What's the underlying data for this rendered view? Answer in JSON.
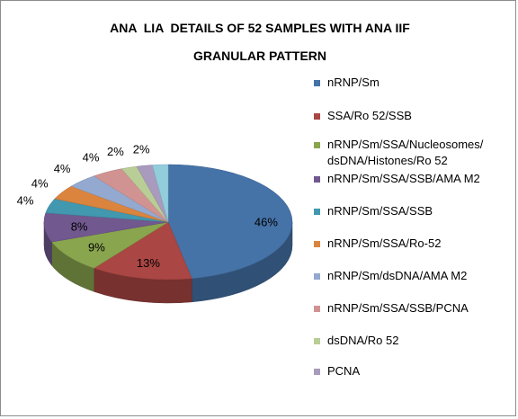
{
  "chart_data": {
    "type": "pie",
    "title_line1": "ANA  LIA  DETAILS OF 52 SAMPLES WITH ANA IIF",
    "title_line2": "GRANULAR PATTERN",
    "legend_placement": "right",
    "slices": [
      {
        "name": "nRNP/Sm",
        "value": 46,
        "label": "46%",
        "color": "#4572A7"
      },
      {
        "name": "SSA/Ro 52/SSB",
        "value": 13,
        "label": "13%",
        "color": "#AA4643"
      },
      {
        "name": "nRNP/Sm/SSA/Nucleosomes/\ndsDNA/Histones/Ro 52",
        "value": 9,
        "label": "9%",
        "color": "#89A54E"
      },
      {
        "name": "nRNP/Sm/SSA/SSB/AMA M2",
        "value": 8,
        "label": "8%",
        "color": "#71588F"
      },
      {
        "name": "nRNP/Sm/SSA/SSB",
        "value": 4,
        "label": "4%",
        "color": "#4198AF"
      },
      {
        "name": "nRNP/Sm/SSA/Ro-52",
        "value": 4,
        "label": "4%",
        "color": "#DB843D"
      },
      {
        "name": "nRNP/Sm/dsDNA/AMA M2",
        "value": 4,
        "label": "4%",
        "color": "#93A9CF"
      },
      {
        "name": "nRNP/Sm/SSA/SSB/PCNA",
        "value": 4,
        "label": "4%",
        "color": "#D19392"
      },
      {
        "name": "dsDNA/Ro 52",
        "value": 2,
        "label": "2%",
        "color": "#B9CD96"
      },
      {
        "name": "PCNA",
        "value": 2,
        "label": "2%",
        "color": "#A99BBD"
      },
      {
        "name": "",
        "value": 2,
        "label": "",
        "color": "#92CDDC"
      }
    ]
  },
  "legend": {
    "items": [
      {
        "label": "nRNP/Sm",
        "color": "#4572A7"
      },
      {
        "label": "SSA/Ro 52/SSB",
        "color": "#AA4643"
      },
      {
        "label": "nRNP/Sm/SSA/Nucleosomes/\ndsDNA/Histones/Ro 52",
        "color": "#89A54E"
      },
      {
        "label": "nRNP/Sm/SSA/SSB/AMA M2",
        "color": "#71588F"
      },
      {
        "label": "nRNP/Sm/SSA/SSB",
        "color": "#4198AF"
      },
      {
        "label": "nRNP/Sm/SSA/Ro-52",
        "color": "#DB843D"
      },
      {
        "label": "nRNP/Sm/dsDNA/AMA M2",
        "color": "#93A9CF"
      },
      {
        "label": "nRNP/Sm/SSA/SSB/PCNA",
        "color": "#D19392"
      },
      {
        "label": "dsDNA/Ro 52",
        "color": "#B9CD96"
      },
      {
        "label": "PCNA",
        "color": "#A99BBD"
      }
    ]
  }
}
